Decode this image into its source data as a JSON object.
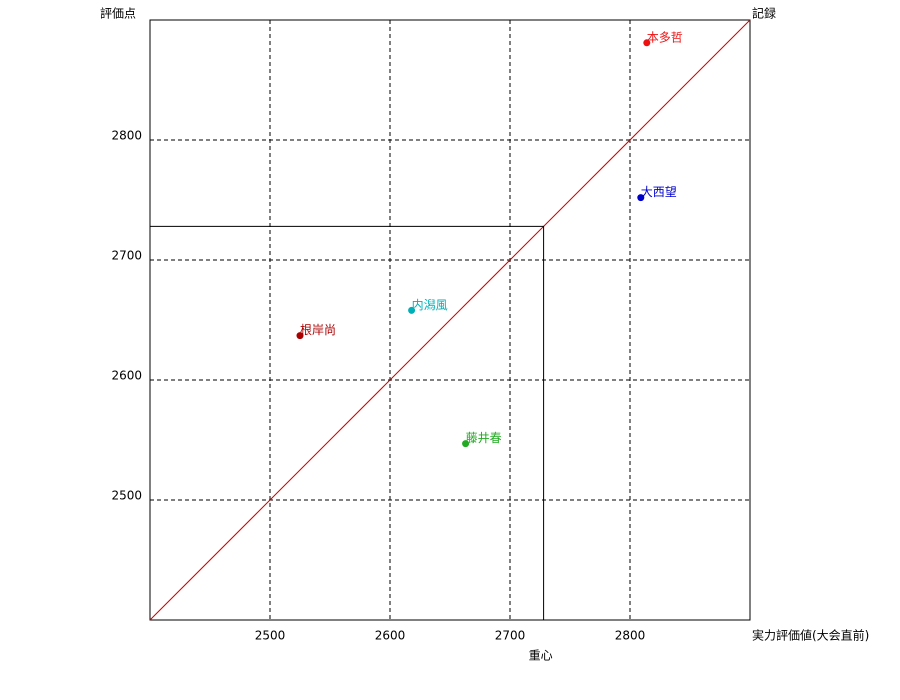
{
  "chart_data": {
    "type": "scatter",
    "x_label": "実力評価値(大会直前)",
    "y_label": "評価点",
    "diagonal_label": "記録",
    "diagonal_color": "#cc0000",
    "centroid": {
      "label": "重心",
      "x": 2728,
      "y": 2728
    },
    "xlim": [
      2400,
      2900
    ],
    "ylim": [
      2400,
      2900
    ],
    "xticks": [
      2500,
      2600,
      2700,
      2800
    ],
    "yticks": [
      2500,
      2600,
      2700,
      2800
    ],
    "grid": true,
    "series": [
      {
        "name": "本多哲",
        "color": "#ee1111",
        "x": [
          2814
        ],
        "y": [
          2881
        ]
      },
      {
        "name": "大西望",
        "color": "#0000cc",
        "x": [
          2809
        ],
        "y": [
          2752
        ]
      },
      {
        "name": "内潟風",
        "color": "#00b0b8",
        "x": [
          2618
        ],
        "y": [
          2658
        ]
      },
      {
        "name": "根岸尚",
        "color": "#aa0000",
        "x": [
          2525
        ],
        "y": [
          2637
        ]
      },
      {
        "name": "藤井春",
        "color": "#22aa22",
        "x": [
          2663
        ],
        "y": [
          2547
        ]
      }
    ]
  }
}
